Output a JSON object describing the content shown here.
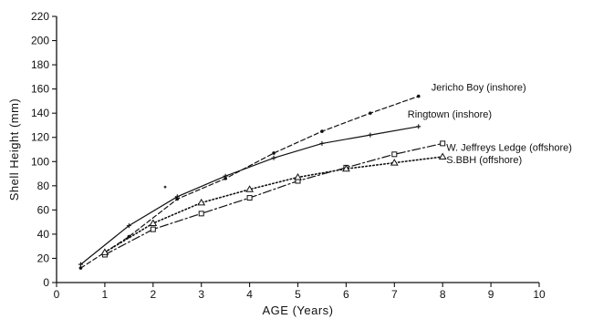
{
  "chart_data": {
    "type": "line",
    "title": "",
    "xlabel": "AGE (Years)",
    "ylabel": "Shell Height (mm)",
    "xlim": [
      0,
      10
    ],
    "ylim": [
      0,
      220
    ],
    "x_ticks": [
      0,
      1,
      2,
      3,
      4,
      5,
      6,
      7,
      8,
      9,
      10
    ],
    "y_ticks": [
      0,
      20,
      40,
      60,
      80,
      100,
      120,
      140,
      160,
      180,
      200,
      220
    ],
    "grid": false,
    "series": [
      {
        "name": "Jericho Boy (inshore)",
        "line_style": "dashed",
        "color": "#111111",
        "x": [
          0.5,
          1.5,
          2.5,
          3.5,
          4.5,
          5.5,
          6.5,
          7.5
        ],
        "y": [
          12,
          38,
          69,
          86,
          107,
          125,
          140,
          154
        ]
      },
      {
        "name": "Ringtown (inshore)",
        "line_style": "solid",
        "color": "#111111",
        "x": [
          0.5,
          1.5,
          2.5,
          3.5,
          4.5,
          5.5,
          6.5,
          7.5
        ],
        "y": [
          15,
          47,
          71,
          88,
          103,
          115,
          122,
          129
        ]
      },
      {
        "name": "W. Jeffreys Ledge (offshore)",
        "line_style": "dash-dot",
        "color": "#111111",
        "x": [
          1,
          2,
          3,
          4,
          5,
          6,
          7,
          8
        ],
        "y": [
          23,
          44,
          57,
          70,
          84,
          95,
          106,
          115
        ]
      },
      {
        "name": "S.BBH (offshore)",
        "line_style": "dotted",
        "color": "#111111",
        "x": [
          1,
          2,
          3,
          4,
          5,
          6,
          7,
          8
        ],
        "y": [
          25,
          49,
          66,
          77,
          87,
          94,
          99,
          104
        ]
      }
    ],
    "stray_mark": {
      "x": 2.25,
      "y": 79
    }
  }
}
